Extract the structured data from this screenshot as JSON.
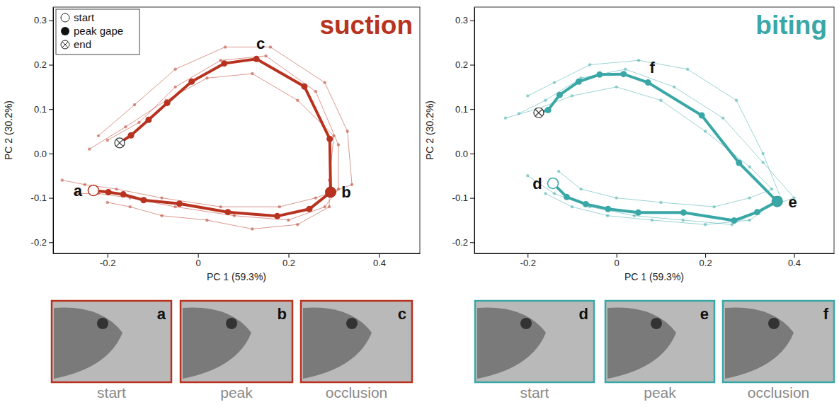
{
  "chart_data": [
    {
      "type": "line",
      "title": "suction",
      "color": "#b83220",
      "x_label": "PC 1 (59.3%)",
      "y_label": "PC 2 (30.2%)",
      "xlim": [
        -0.32,
        0.49
      ],
      "ylim": [
        -0.225,
        0.33
      ],
      "xticks": [
        -0.2,
        0,
        0.2,
        0.4
      ],
      "yticks": [
        -0.2,
        -0.1,
        {
          "value": 0,
          "label": "0.0"
        },
        0.1,
        0.2,
        0.3
      ],
      "legend": "upper left",
      "legend_entries": [
        "start",
        "peak gape",
        "end"
      ],
      "mean": {
        "x": [
          -0.231,
          -0.198,
          -0.165,
          -0.12,
          -0.041,
          0.066,
          0.175,
          0.246,
          0.293,
          0.291,
          0.235,
          0.129,
          0.058,
          -0.014,
          -0.068,
          -0.109,
          -0.148,
          -0.173
        ],
        "y": [
          -0.083,
          -0.087,
          -0.092,
          -0.105,
          -0.113,
          -0.132,
          -0.141,
          -0.125,
          -0.087,
          0.033,
          0.151,
          0.213,
          0.203,
          0.162,
          0.114,
          0.076,
          0.041,
          0.024
        ],
        "peak_gape_index": 8,
        "point_labels": [
          {
            "index": 0,
            "label": "a"
          },
          {
            "index": 8,
            "label": "b"
          },
          {
            "index": 11,
            "label": "c"
          }
        ]
      },
      "trials": [
        {
          "x": [
            -0.27,
            -0.22,
            -0.15,
            -0.05,
            0.08,
            0.2,
            0.28,
            0.31,
            0.31,
            0.26,
            0.15,
            0.05,
            -0.05,
            -0.13,
            -0.2
          ],
          "y": [
            -0.09,
            -0.09,
            -0.1,
            -0.12,
            -0.14,
            -0.15,
            -0.12,
            -0.08,
            0.02,
            0.14,
            0.22,
            0.21,
            0.15,
            0.07,
            0.03
          ]
        },
        {
          "x": [
            -0.3,
            -0.25,
            -0.18,
            -0.08,
            0.05,
            0.18,
            0.26,
            0.34,
            0.33,
            0.28,
            0.16,
            0.06,
            -0.05,
            -0.14,
            -0.22
          ],
          "y": [
            -0.06,
            -0.07,
            -0.08,
            -0.1,
            -0.12,
            -0.12,
            -0.1,
            -0.07,
            0.05,
            0.16,
            0.24,
            0.24,
            0.19,
            0.11,
            0.04
          ]
        },
        {
          "x": [
            -0.2,
            -0.15,
            -0.08,
            0.02,
            0.12,
            0.22,
            0.29,
            0.29,
            0.3,
            0.22,
            0.12,
            0.02,
            -0.07,
            -0.16,
            -0.24
          ],
          "y": [
            -0.11,
            -0.12,
            -0.14,
            -0.15,
            -0.17,
            -0.16,
            -0.12,
            -0.06,
            0.04,
            0.12,
            0.18,
            0.17,
            0.12,
            0.06,
            0.01
          ]
        }
      ],
      "frames": [
        {
          "letter": "a",
          "caption": "start"
        },
        {
          "letter": "b",
          "caption": "peak"
        },
        {
          "letter": "c",
          "caption": "occlusion"
        }
      ]
    },
    {
      "type": "line",
      "title": "biting",
      "color": "#3aa7a7",
      "x_label": "PC 1 (59.3%)",
      "y_label": "PC 2 (30.2%)",
      "xlim": [
        -0.32,
        0.49
      ],
      "ylim": [
        -0.225,
        0.33
      ],
      "xticks": [
        -0.2,
        0,
        0.2,
        0.4
      ],
      "yticks": [
        -0.2,
        -0.1,
        {
          "value": 0,
          "label": "0.0"
        },
        0.1,
        0.2,
        0.3
      ],
      "mean": {
        "x": [
          -0.143,
          -0.112,
          -0.069,
          -0.019,
          0.049,
          0.151,
          0.265,
          0.317,
          0.362,
          0.276,
          0.192,
          0.071,
          0.016,
          -0.038,
          -0.085,
          -0.128,
          -0.154,
          -0.175
        ],
        "y": [
          -0.067,
          -0.098,
          -0.114,
          -0.125,
          -0.133,
          -0.133,
          -0.151,
          -0.132,
          -0.108,
          -0.021,
          0.086,
          0.16,
          0.179,
          0.178,
          0.162,
          0.132,
          0.098,
          0.092
        ],
        "peak_gape_index": 8,
        "point_labels": [
          {
            "index": 0,
            "label": "d"
          },
          {
            "index": 8,
            "label": "e"
          },
          {
            "index": 11,
            "label": "f"
          }
        ]
      },
      "trials": [
        {
          "x": [
            -0.2,
            -0.14,
            -0.06,
            0.04,
            0.15,
            0.26,
            0.34,
            0.4,
            0.33,
            0.24,
            0.13,
            0.02,
            -0.08,
            -0.16,
            -0.22
          ],
          "y": [
            -0.05,
            -0.09,
            -0.12,
            -0.14,
            -0.15,
            -0.16,
            -0.12,
            -0.1,
            -0.02,
            0.08,
            0.15,
            0.19,
            0.17,
            0.12,
            0.09
          ]
        },
        {
          "x": [
            -0.16,
            -0.1,
            -0.02,
            0.08,
            0.2,
            0.3,
            0.37,
            0.33,
            0.27,
            0.16,
            0.05,
            -0.06,
            -0.14,
            -0.2
          ],
          "y": [
            -0.09,
            -0.12,
            -0.14,
            -0.15,
            -0.16,
            -0.15,
            -0.1,
            0.0,
            0.12,
            0.19,
            0.21,
            0.2,
            0.16,
            0.13
          ]
        },
        {
          "x": [
            -0.13,
            -0.08,
            0.0,
            0.1,
            0.22,
            0.3,
            0.35,
            0.3,
            0.2,
            0.1,
            0.0,
            -0.1,
            -0.18,
            -0.25
          ],
          "y": [
            -0.04,
            -0.08,
            -0.1,
            -0.11,
            -0.12,
            -0.1,
            -0.08,
            -0.03,
            0.05,
            0.12,
            0.15,
            0.13,
            0.1,
            0.08
          ]
        }
      ],
      "frames": [
        {
          "letter": "d",
          "caption": "start"
        },
        {
          "letter": "e",
          "caption": "peak"
        },
        {
          "letter": "f",
          "caption": "occlusion"
        }
      ]
    }
  ]
}
